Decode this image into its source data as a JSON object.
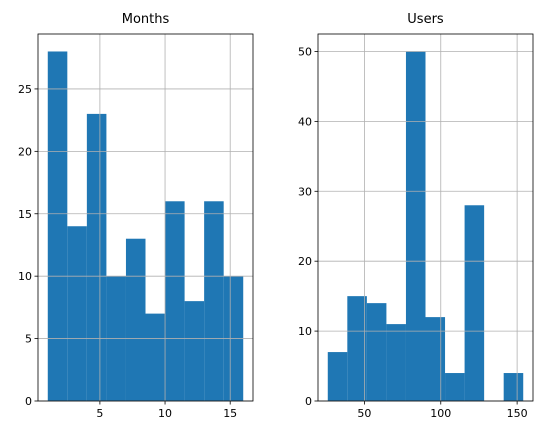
{
  "chart_data": [
    {
      "type": "histogram",
      "title": "Months",
      "color": "#1f77b4",
      "grid": true,
      "bins": [
        1,
        2.5,
        4,
        5.5,
        7,
        8.5,
        10,
        11.5,
        13,
        14.5,
        16
      ],
      "values": [
        28,
        14,
        23,
        10,
        13,
        7,
        16,
        8,
        16,
        10
      ],
      "xlim": [
        0.25,
        16.75
      ],
      "xticks": [
        5,
        10,
        15
      ],
      "ylim": [
        0,
        29.4
      ],
      "yticks": [
        0,
        5,
        10,
        15,
        20,
        25
      ]
    },
    {
      "type": "histogram",
      "title": "Users",
      "color": "#1f77b4",
      "grid": true,
      "bins": [
        26,
        38.8,
        51.6,
        64.4,
        77.2,
        90,
        102.8,
        115.6,
        128.4,
        141.2,
        154
      ],
      "values": [
        7,
        15,
        14,
        11,
        50,
        12,
        4,
        28,
        0,
        4
      ],
      "xlim": [
        19.6,
        160.4
      ],
      "xticks": [
        50,
        100,
        150
      ],
      "ylim": [
        0,
        52.5
      ],
      "yticks": [
        0,
        10,
        20,
        30,
        40,
        50
      ]
    }
  ]
}
